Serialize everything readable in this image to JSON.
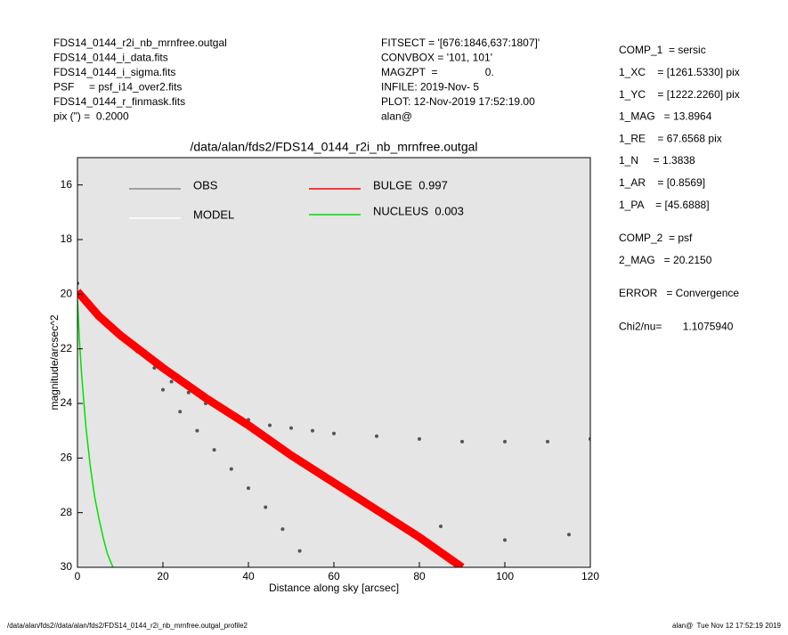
{
  "header": {
    "left": [
      "FDS14_0144_r2i_nb_mrnfree.outgal",
      "FDS14_0144_i_data.fits",
      "FDS14_0144_i_sigma.fits",
      "PSF     = psf_i14_over2.fits",
      "FDS14_0144_r_finmask.fits",
      "pix (\") =  0.2000"
    ],
    "middle": [
      "FITSECT = '[676:1846,637:1807]'",
      "CONVBOX = '101, 101'",
      "MAGZPT  =                0.",
      "INFILE: 2019-Nov- 5",
      "PLOT: 12-Nov-2019 17:52:19.00",
      "alan@"
    ],
    "right": [
      [
        "COMP_1  = sersic",
        "1_XC    = [1261.5330] pix",
        "1_YC    = [1222.2260] pix",
        "1_MAG   = 13.8964",
        "1_RE    = 67.6568 pix",
        "1_N     = 1.3838",
        "1_AR    = [0.8569]",
        "1_PA    = [45.6888]"
      ],
      [
        "COMP_2  = psf",
        "2_MAG   = 20.2150"
      ],
      [
        "ERROR   = Convergence"
      ],
      [
        "Chi2/nu=       1.1075940"
      ]
    ]
  },
  "footer": {
    "left": "/data/alan/fds2//data/alan/fds2/FDS14_0144_r2i_nb_mrnfree.outgal_profile2",
    "right": "alan@  Tue Nov 12 17:52:19 2019"
  },
  "chart_data": {
    "type": "line",
    "title": "/data/alan/fds2/FDS14_0144_r2i_nb_mrnfree.outgal",
    "x_label": "Distance along sky [arcsec]",
    "y_label": "magnitude/arcsec^2",
    "xlim": [
      0,
      120
    ],
    "xticks": [
      0,
      20,
      40,
      60,
      80,
      100,
      120
    ],
    "ylim": [
      30,
      15
    ],
    "yticks": [
      16,
      18,
      20,
      22,
      24,
      26,
      28,
      30
    ],
    "background": "#e5e5e5",
    "series": [
      {
        "name": "OBS",
        "color": "#555555",
        "style": "points",
        "x": [
          0,
          2,
          5,
          8,
          10,
          14,
          18,
          22,
          26,
          30,
          35,
          40,
          45,
          50,
          55,
          60,
          70,
          80,
          90,
          100,
          110,
          120,
          20,
          24,
          28,
          32,
          36,
          40,
          44,
          48,
          52,
          60,
          70,
          85,
          100,
          115
        ],
        "values": [
          19.6,
          20.2,
          20.7,
          21.2,
          21.5,
          22.1,
          22.7,
          23.2,
          23.6,
          24.0,
          24.3,
          24.6,
          24.8,
          24.9,
          25.0,
          25.1,
          25.2,
          25.3,
          25.4,
          25.4,
          25.4,
          25.3,
          23.5,
          24.3,
          25.0,
          25.7,
          26.4,
          27.1,
          27.8,
          28.6,
          29.4,
          27.0,
          28.0,
          28.5,
          29.0,
          28.8
        ]
      },
      {
        "name": "MODEL",
        "color": "#ffffff",
        "style": "line",
        "x": [
          0,
          5,
          10,
          20,
          30,
          40,
          50,
          60,
          70,
          80,
          90
        ],
        "values": [
          19.9,
          20.8,
          21.5,
          22.7,
          23.8,
          24.8,
          25.9,
          26.9,
          27.9,
          28.9,
          30.0
        ]
      },
      {
        "name": "BULGE  0.997",
        "color": "#ff0000",
        "style": "band",
        "x": [
          0,
          5,
          10,
          20,
          30,
          40,
          50,
          60,
          70,
          80,
          90
        ],
        "values": [
          19.9,
          20.8,
          21.5,
          22.7,
          23.8,
          24.8,
          25.9,
          26.9,
          27.9,
          28.9,
          30.0
        ]
      },
      {
        "name": "NUCLEUS  0.003",
        "color": "#00e000",
        "style": "line",
        "x": [
          0,
          0.5,
          1,
          2,
          3,
          4,
          5,
          6,
          7,
          8.3
        ],
        "values": [
          20.2,
          21.8,
          23.0,
          24.9,
          26.3,
          27.4,
          28.2,
          28.9,
          29.5,
          30.0
        ]
      }
    ]
  }
}
